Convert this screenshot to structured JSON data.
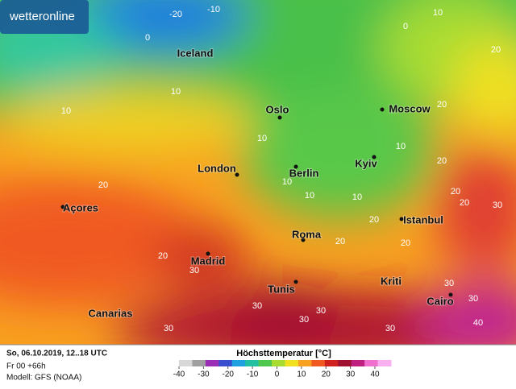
{
  "logo": "wetteronline",
  "places": [
    "Iceland",
    "Oslo",
    "Moscow",
    "London",
    "Berlin",
    "Kyiv",
    "Açores",
    "Istanbul",
    "Madrid",
    "Roma",
    "Tunis",
    "Kriti",
    "Cairo",
    "Canarias"
  ],
  "isoline_labels": [
    -20,
    -10,
    0,
    10,
    0,
    20,
    10,
    10,
    20,
    10,
    10,
    20,
    20,
    10,
    10,
    10,
    20,
    20,
    30,
    20,
    30,
    20,
    20,
    20,
    30,
    30,
    30,
    30,
    30,
    30,
    30,
    40
  ],
  "footer": {
    "valid": "So, 06.10.2019, 12..18 UTC",
    "run": "Fr 00 +66h",
    "model": "Modell: GFS (NOAA)"
  },
  "legend": {
    "title": "Höchsttemperatur [°C]",
    "ticks": [
      -40,
      -30,
      -20,
      -10,
      0,
      10,
      20,
      30,
      40
    ],
    "colors": [
      "#d8d8d8",
      "#a0a0a0",
      "#9a2fb5",
      "#3a4fd0",
      "#1fa0e0",
      "#20c0a0",
      "#50c850",
      "#a8dc30",
      "#f0e020",
      "#f8a020",
      "#f05a20",
      "#d02020",
      "#a01030",
      "#c02080",
      "#f070d0",
      "#f8b0f0"
    ]
  }
}
